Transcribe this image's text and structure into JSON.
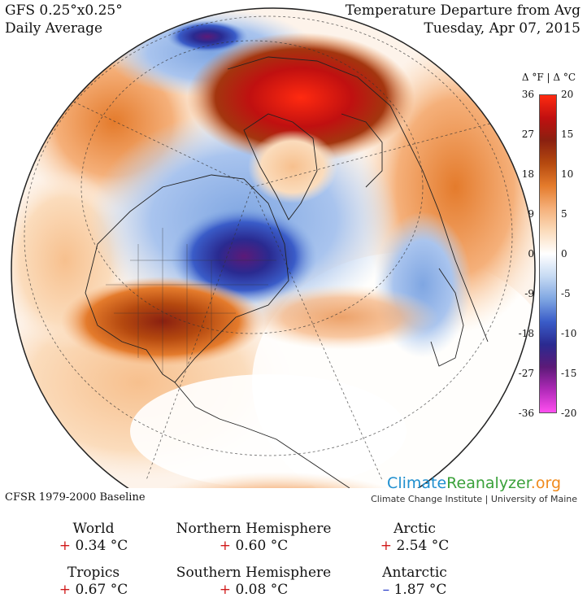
{
  "header": {
    "model": "GFS 0.25°x0.25°",
    "period": "Daily Average",
    "title": "Temperature Departure from Avg",
    "date": "Tuesday, Apr 07, 2015"
  },
  "legend": {
    "units_label": "Δ °F  |  Δ °C",
    "fahrenheit_ticks": [
      "36",
      "27",
      "18",
      "9",
      "0",
      "-9",
      "-18",
      "-27",
      "-36"
    ],
    "celsius_ticks": [
      "20",
      "15",
      "10",
      "5",
      "0",
      "-5",
      "-10",
      "-15",
      "-20"
    ],
    "colors": [
      "#ff4ff0",
      "#b02ab8",
      "#5c1a78",
      "#2a2a90",
      "#3a5cc8",
      "#7fa6e2",
      "#c6daf3",
      "#ffffff",
      "#fbdcbc",
      "#f5b07a",
      "#e47b2c",
      "#b5490f",
      "#8a2010",
      "#c01010",
      "#ff2a10"
    ]
  },
  "baseline": "CFSR 1979-2000 Baseline",
  "brand": {
    "part1": "Climate",
    "part2": "Reanalyzer",
    "part3": ".org",
    "subtitle": "Climate Change Institute | University of Maine"
  },
  "stats": [
    {
      "name": "World",
      "sign": "+",
      "value": "0.34 °C"
    },
    {
      "name": "Northern Hemisphere",
      "sign": "+",
      "value": "0.60 °C"
    },
    {
      "name": "Arctic",
      "sign": "+",
      "value": "2.54 °C"
    },
    {
      "name": "Tropics",
      "sign": "+",
      "value": "0.67 °C"
    },
    {
      "name": "Southern Hemisphere",
      "sign": "+",
      "value": "0.08 °C"
    },
    {
      "name": "Antarctic",
      "sign": "–",
      "value": "1.87 °C"
    }
  ]
}
